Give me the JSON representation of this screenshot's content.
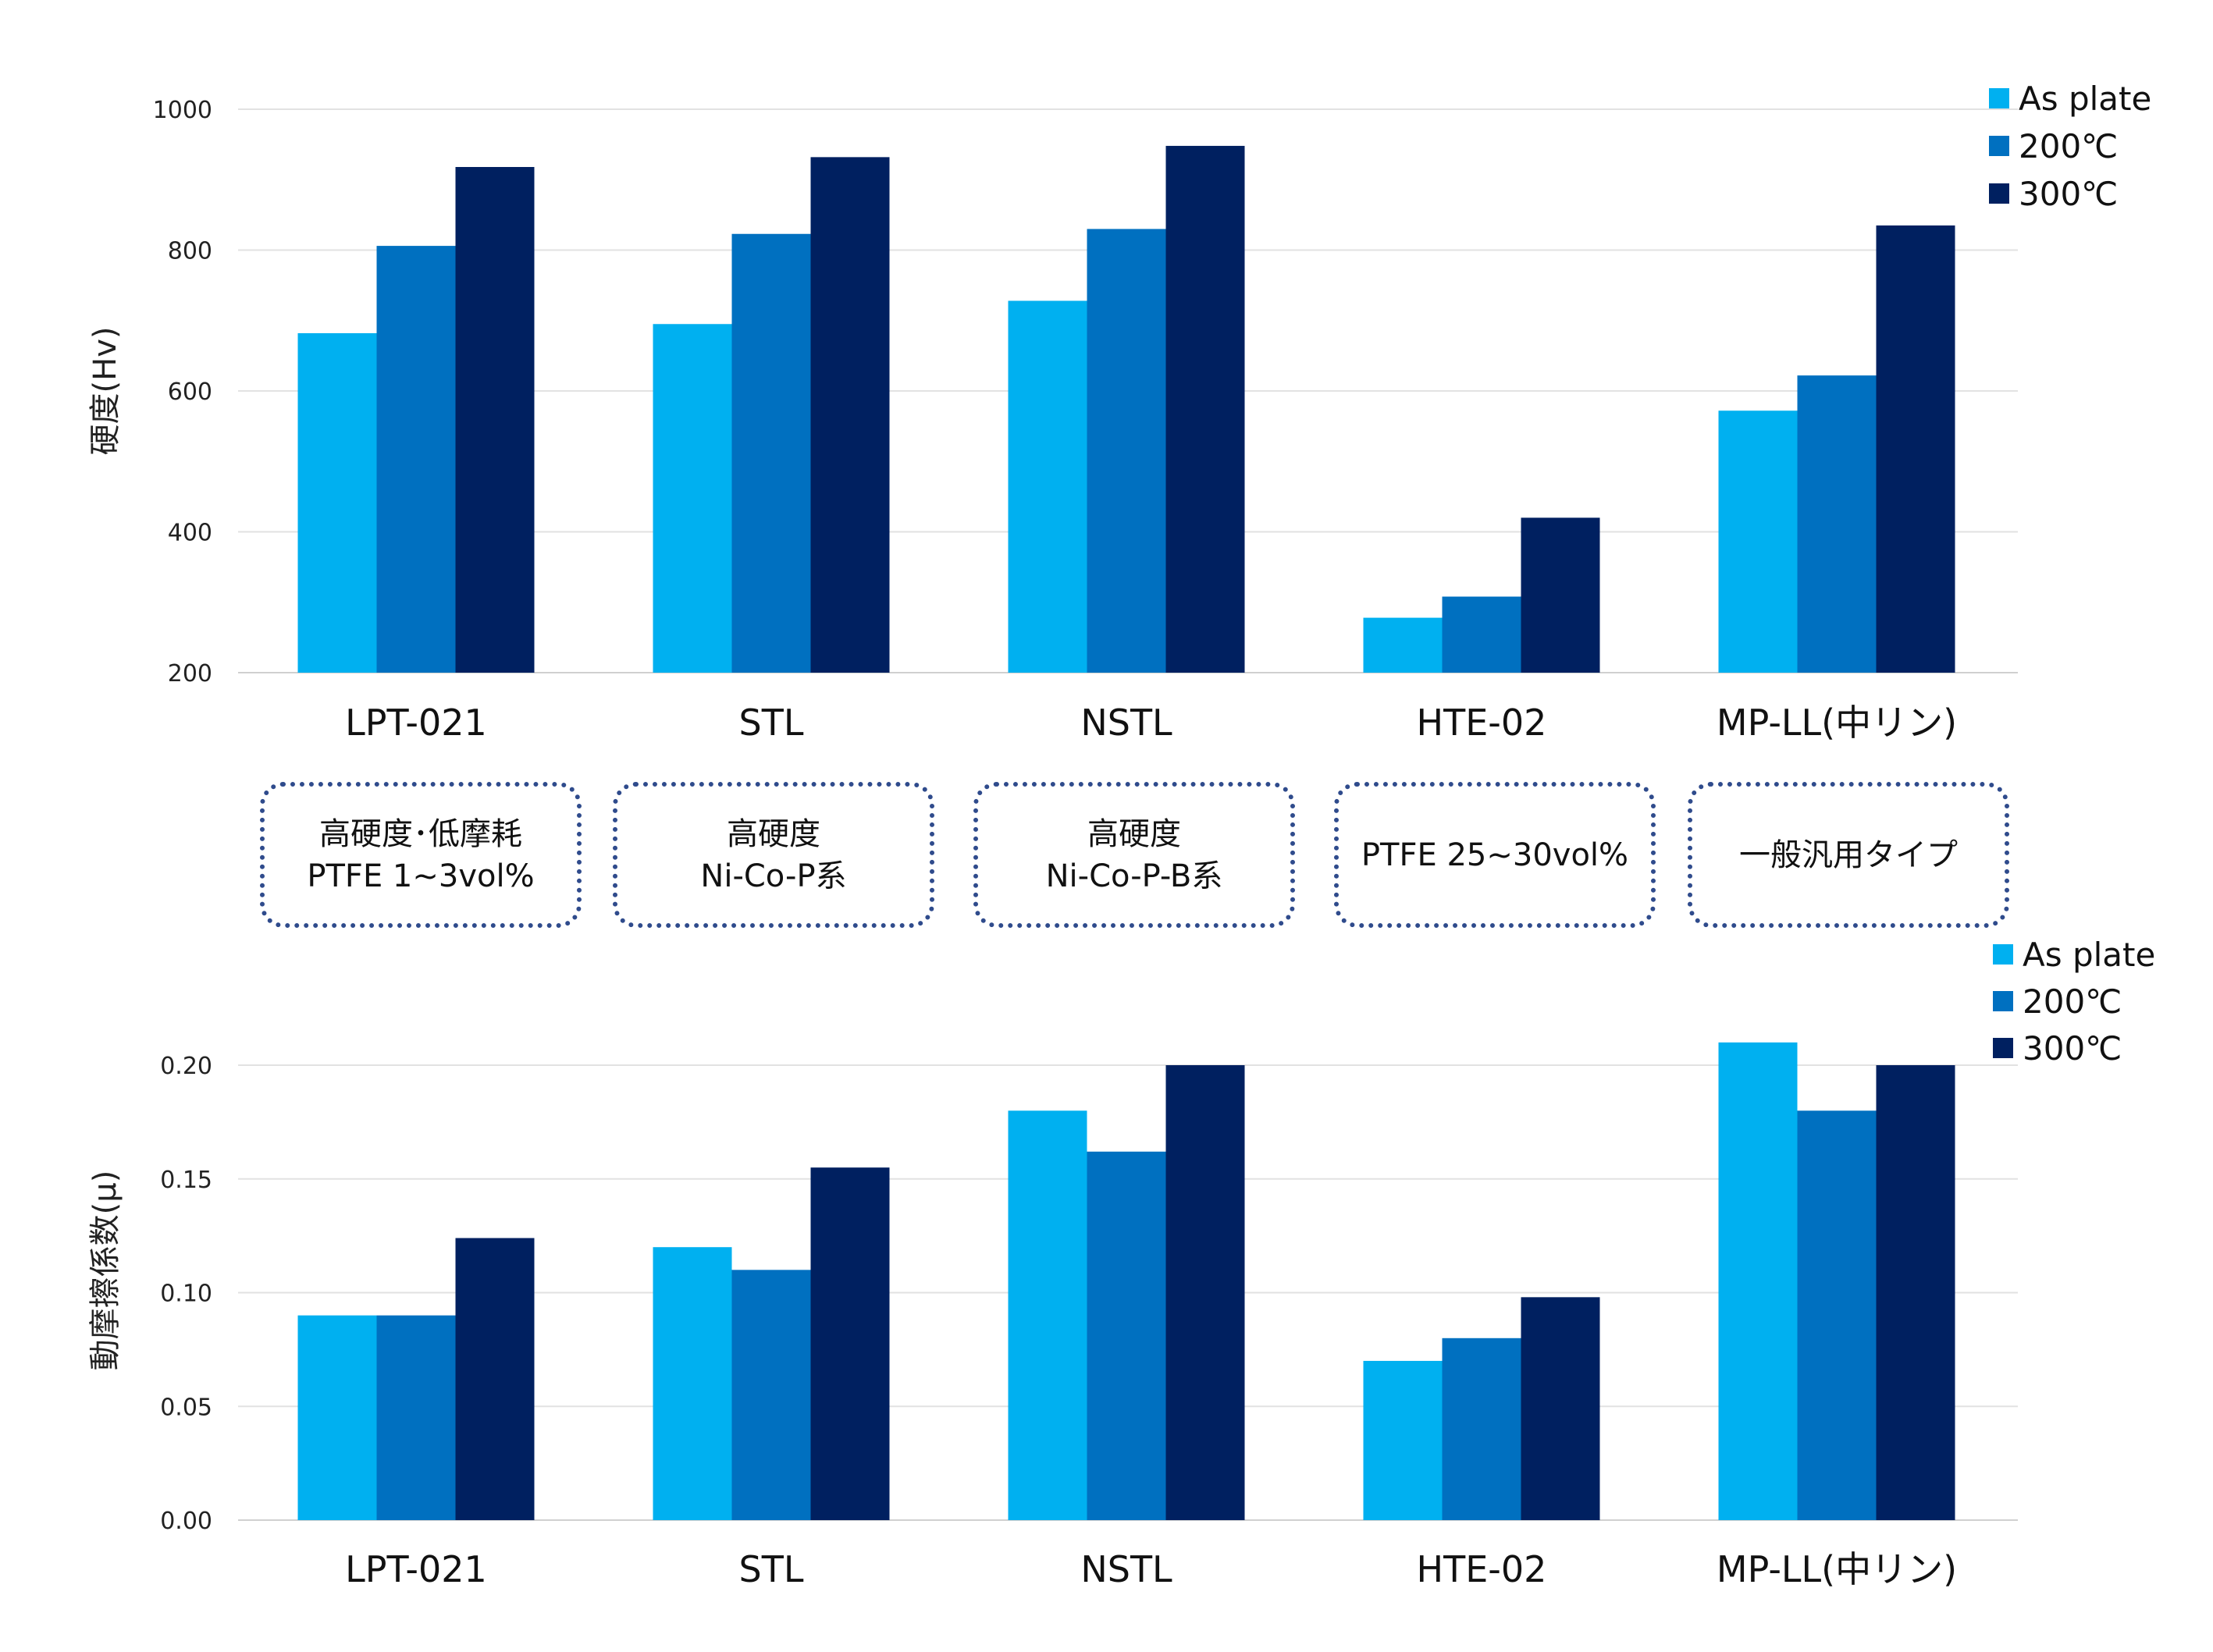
{
  "colors": {
    "as_plate": "#00b0f0",
    "c200": "#0070c0",
    "c300": "#002060",
    "box_border": "#2f4b8c"
  },
  "notes": [
    {
      "lines": [
        "高硬度･低摩耗",
        "PTFE 1~3vol%"
      ]
    },
    {
      "lines": [
        "高硬度",
        "Ni-Co-P系"
      ]
    },
    {
      "lines": [
        "高硬度",
        "Ni-Co-P-B系"
      ]
    },
    {
      "lines": [
        "PTFE 25~30vol%"
      ]
    },
    {
      "lines": [
        "一般汎用タイプ"
      ]
    }
  ],
  "chart_data": [
    {
      "type": "bar",
      "ylabel": "硬度(Hv)",
      "ylim": [
        200,
        1000
      ],
      "yticks": [
        "200",
        "400",
        "600",
        "800",
        "1000"
      ],
      "ytick_values": [
        200,
        400,
        600,
        800,
        1000
      ],
      "grid": true,
      "legend": "top-right",
      "categories": [
        "LPT-021",
        "STL",
        "NSTL",
        "HTE-02",
        "MP-LL(中リン)"
      ],
      "series": [
        {
          "name": "As plate",
          "color_key": "as_plate",
          "values": [
            682,
            695,
            728,
            278,
            572
          ]
        },
        {
          "name": "200℃",
          "color_key": "c200",
          "values": [
            806,
            823,
            830,
            308,
            622
          ]
        },
        {
          "name": "300℃",
          "color_key": "c300",
          "values": [
            918,
            932,
            948,
            420,
            835
          ]
        }
      ]
    },
    {
      "type": "bar",
      "ylabel": "動摩擦係数(μ)",
      "ylim": [
        0.0,
        0.2
      ],
      "yticks": [
        "0.00",
        "0.05",
        "0.10",
        "0.15",
        "0.20"
      ],
      "ytick_values": [
        0.0,
        0.05,
        0.1,
        0.15,
        0.2
      ],
      "grid": true,
      "legend": "top-right",
      "categories": [
        "LPT-021",
        "STL",
        "NSTL",
        "HTE-02",
        "MP-LL(中リン)"
      ],
      "series": [
        {
          "name": "As plate",
          "color_key": "as_plate",
          "values": [
            0.09,
            0.12,
            0.18,
            0.07,
            0.21
          ]
        },
        {
          "name": "200℃",
          "color_key": "c200",
          "values": [
            0.09,
            0.11,
            0.162,
            0.08,
            0.18
          ]
        },
        {
          "name": "300℃",
          "color_key": "c300",
          "values": [
            0.124,
            0.155,
            0.2,
            0.098,
            0.2
          ]
        }
      ]
    }
  ]
}
